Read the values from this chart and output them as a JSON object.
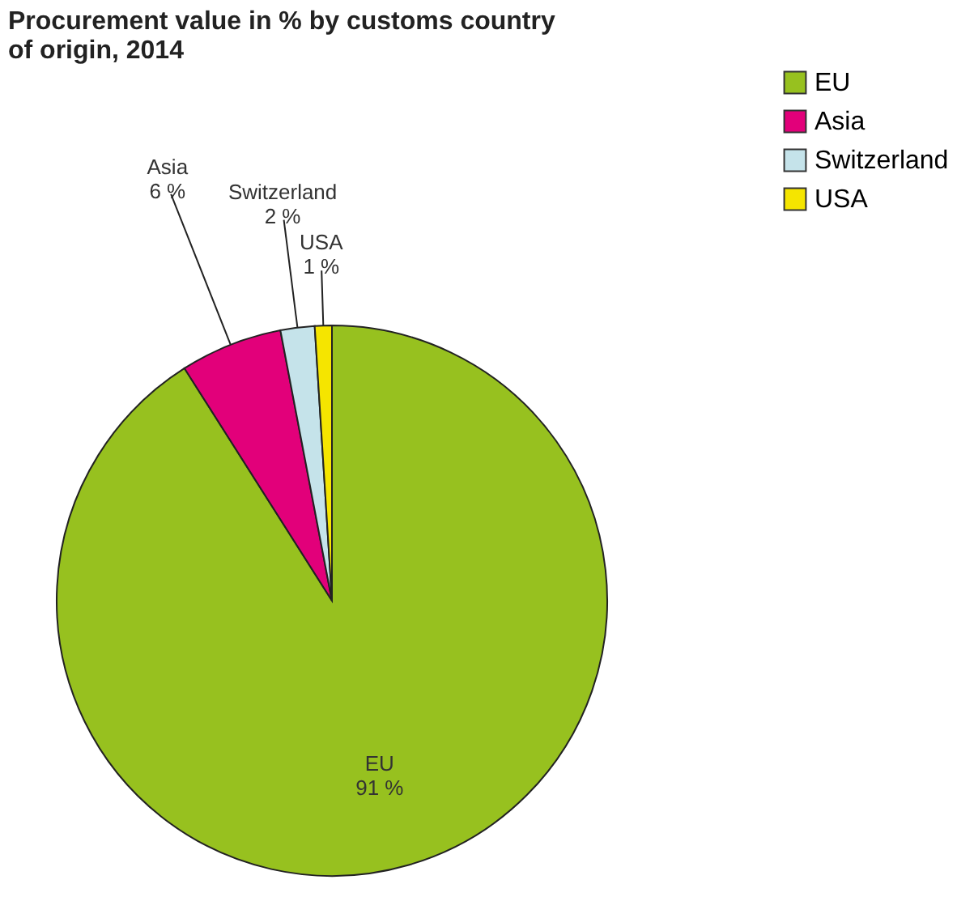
{
  "chart_data": {
    "type": "pie",
    "title": [
      "Procurement value in % by customs country",
      "of origin, 2014"
    ],
    "categories": [
      "EU",
      "Asia",
      "Switzerland",
      "USA"
    ],
    "values": [
      91,
      6,
      2,
      1
    ],
    "colors": [
      "#97c11f",
      "#e2007a",
      "#c5e3ea",
      "#f5e500"
    ],
    "value_labels": [
      "91 %",
      "6 %",
      "2 %",
      "1 %"
    ],
    "legend": "top right"
  }
}
